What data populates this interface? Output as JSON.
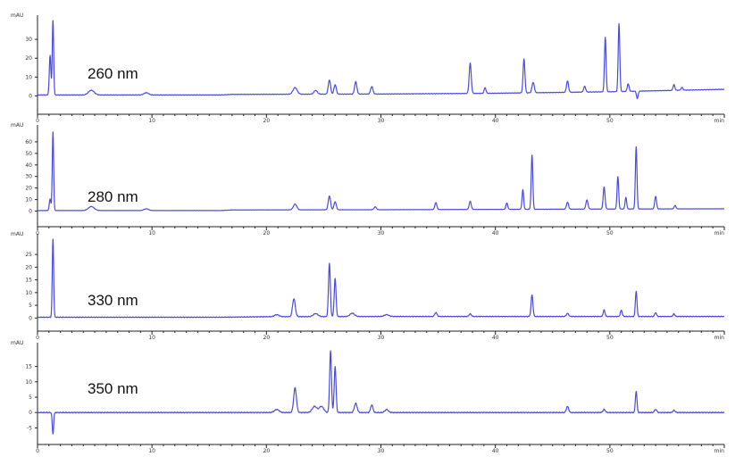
{
  "chart_data": [
    {
      "type": "line",
      "label": "260 nm",
      "ylabel": "mAU",
      "xlabel": "min",
      "xlim": [
        0,
        60
      ],
      "ylim": [
        -5,
        40
      ],
      "yticks": [
        0,
        10,
        20,
        30
      ],
      "xticks": [
        0,
        10,
        20,
        30,
        40,
        50
      ],
      "grid": false,
      "series": [
        {
          "baseline": [
            [
              0,
              0.5
            ],
            [
              16,
              0.5
            ],
            [
              17,
              0.8
            ],
            [
              30,
              1.0
            ],
            [
              40,
              1.4
            ],
            [
              50,
              2.2
            ],
            [
              60,
              3.5
            ]
          ],
          "peaks": [
            {
              "x": 1.1,
              "y": 21,
              "w": 0.07
            },
            {
              "x": 1.35,
              "y": 40,
              "w": 0.06
            },
            {
              "x": 4.7,
              "y": 2.5,
              "w": 0.25
            },
            {
              "x": 9.5,
              "y": 1.2,
              "w": 0.2
            },
            {
              "x": 22.5,
              "y": 3.5,
              "w": 0.18
            },
            {
              "x": 24.3,
              "y": 2.0,
              "w": 0.15
            },
            {
              "x": 25.5,
              "y": 7.5,
              "w": 0.1
            },
            {
              "x": 26.0,
              "y": 5.0,
              "w": 0.1
            },
            {
              "x": 27.8,
              "y": 6.5,
              "w": 0.1
            },
            {
              "x": 29.2,
              "y": 4.0,
              "w": 0.1
            },
            {
              "x": 37.8,
              "y": 16,
              "w": 0.09
            },
            {
              "x": 39.1,
              "y": 3,
              "w": 0.08
            },
            {
              "x": 42.5,
              "y": 18,
              "w": 0.08
            },
            {
              "x": 43.3,
              "y": 5.5,
              "w": 0.1
            },
            {
              "x": 46.3,
              "y": 6,
              "w": 0.09
            },
            {
              "x": 47.8,
              "y": 3,
              "w": 0.09
            },
            {
              "x": 49.6,
              "y": 29,
              "w": 0.07
            },
            {
              "x": 50.8,
              "y": 36,
              "w": 0.07
            },
            {
              "x": 51.6,
              "y": 4,
              "w": 0.08
            },
            {
              "x": 55.6,
              "y": 3,
              "w": 0.08
            },
            {
              "x": 56.3,
              "y": 1.5,
              "w": 0.08
            }
          ],
          "dips": [
            {
              "x": 52.4,
              "y": -4,
              "w": 0.07
            }
          ]
        }
      ]
    },
    {
      "type": "line",
      "label": "280 nm",
      "ylabel": "mAU",
      "xlabel": "min",
      "xlim": [
        0,
        60
      ],
      "ylim": [
        -5,
        70
      ],
      "yticks": [
        0,
        10,
        20,
        30,
        40,
        50,
        60
      ],
      "xticks": [
        0,
        10,
        20,
        30,
        40,
        50
      ],
      "grid": false,
      "series": [
        {
          "baseline": [
            [
              0,
              0.5
            ],
            [
              16,
              0.5
            ],
            [
              17,
              1.0
            ],
            [
              30,
              1.2
            ],
            [
              40,
              1.5
            ],
            [
              50,
              1.8
            ],
            [
              60,
              2.0
            ]
          ],
          "peaks": [
            {
              "x": 1.1,
              "y": 10,
              "w": 0.07
            },
            {
              "x": 1.35,
              "y": 68,
              "w": 0.06
            },
            {
              "x": 4.7,
              "y": 3.5,
              "w": 0.25
            },
            {
              "x": 9.5,
              "y": 1.5,
              "w": 0.2
            },
            {
              "x": 22.5,
              "y": 5,
              "w": 0.15
            },
            {
              "x": 25.5,
              "y": 12,
              "w": 0.1
            },
            {
              "x": 26.0,
              "y": 7,
              "w": 0.1
            },
            {
              "x": 29.5,
              "y": 2.5,
              "w": 0.1
            },
            {
              "x": 34.8,
              "y": 6,
              "w": 0.09
            },
            {
              "x": 37.8,
              "y": 7,
              "w": 0.09
            },
            {
              "x": 41.0,
              "y": 5.5,
              "w": 0.08
            },
            {
              "x": 42.4,
              "y": 17,
              "w": 0.07
            },
            {
              "x": 43.2,
              "y": 47,
              "w": 0.07
            },
            {
              "x": 46.3,
              "y": 6,
              "w": 0.09
            },
            {
              "x": 48.0,
              "y": 8,
              "w": 0.09
            },
            {
              "x": 49.5,
              "y": 19,
              "w": 0.08
            },
            {
              "x": 50.7,
              "y": 28,
              "w": 0.07
            },
            {
              "x": 51.4,
              "y": 10,
              "w": 0.07
            },
            {
              "x": 52.3,
              "y": 54,
              "w": 0.07
            },
            {
              "x": 54.0,
              "y": 11,
              "w": 0.08
            },
            {
              "x": 55.7,
              "y": 3,
              "w": 0.08
            }
          ],
          "dips": []
        }
      ]
    },
    {
      "type": "line",
      "label": "330 nm",
      "ylabel": "mAU",
      "xlabel": "min",
      "xlim": [
        0,
        60
      ],
      "ylim": [
        -2,
        31
      ],
      "yticks": [
        0,
        5,
        10,
        15,
        20,
        25
      ],
      "xticks": [
        0,
        10,
        20,
        30,
        40,
        50
      ],
      "grid": false,
      "series": [
        {
          "baseline": [
            [
              0,
              0.3
            ],
            [
              16,
              0.3
            ],
            [
              20,
              0.5
            ],
            [
              30,
              0.6
            ],
            [
              40,
              0.6
            ],
            [
              50,
              0.6
            ],
            [
              60,
              0.6
            ]
          ],
          "peaks": [
            {
              "x": 1.35,
              "y": 31,
              "w": 0.06
            },
            {
              "x": 20.9,
              "y": 0.8,
              "w": 0.2
            },
            {
              "x": 22.4,
              "y": 7,
              "w": 0.12
            },
            {
              "x": 24.3,
              "y": 1.2,
              "w": 0.2
            },
            {
              "x": 25.5,
              "y": 21,
              "w": 0.08
            },
            {
              "x": 26.0,
              "y": 15,
              "w": 0.08
            },
            {
              "x": 27.5,
              "y": 1.3,
              "w": 0.2
            },
            {
              "x": 30.5,
              "y": 0.7,
              "w": 0.2
            },
            {
              "x": 34.8,
              "y": 1.5,
              "w": 0.1
            },
            {
              "x": 37.8,
              "y": 1,
              "w": 0.1
            },
            {
              "x": 43.2,
              "y": 8.5,
              "w": 0.08
            },
            {
              "x": 46.3,
              "y": 1.2,
              "w": 0.1
            },
            {
              "x": 49.5,
              "y": 2.5,
              "w": 0.08
            },
            {
              "x": 51.0,
              "y": 2.5,
              "w": 0.08
            },
            {
              "x": 52.3,
              "y": 10,
              "w": 0.07
            },
            {
              "x": 54.0,
              "y": 1.5,
              "w": 0.08
            },
            {
              "x": 55.6,
              "y": 1,
              "w": 0.08
            }
          ],
          "dips": []
        }
      ]
    },
    {
      "type": "line",
      "label": "350 nm",
      "ylabel": "mAU",
      "xlabel": "min",
      "xlim": [
        0,
        60
      ],
      "ylim": [
        -7.5,
        21
      ],
      "yticks": [
        -5,
        0,
        5,
        10,
        15
      ],
      "xticks": [
        0,
        10,
        20,
        30,
        40,
        50
      ],
      "grid": false,
      "series": [
        {
          "baseline": [
            [
              0,
              0
            ],
            [
              60,
              0
            ]
          ],
          "peaks": [
            {
              "x": 20.9,
              "y": 1,
              "w": 0.2
            },
            {
              "x": 22.5,
              "y": 8,
              "w": 0.12
            },
            {
              "x": 24.2,
              "y": 2,
              "w": 0.2
            },
            {
              "x": 24.8,
              "y": 2,
              "w": 0.2
            },
            {
              "x": 25.6,
              "y": 20,
              "w": 0.08
            },
            {
              "x": 26.0,
              "y": 15,
              "w": 0.08
            },
            {
              "x": 27.8,
              "y": 3,
              "w": 0.12
            },
            {
              "x": 29.2,
              "y": 2.5,
              "w": 0.1
            },
            {
              "x": 30.5,
              "y": 1,
              "w": 0.15
            },
            {
              "x": 46.3,
              "y": 2,
              "w": 0.1
            },
            {
              "x": 49.5,
              "y": 1,
              "w": 0.1
            },
            {
              "x": 52.3,
              "y": 7,
              "w": 0.07
            },
            {
              "x": 54.0,
              "y": 1,
              "w": 0.1
            },
            {
              "x": 55.6,
              "y": 0.7,
              "w": 0.1
            }
          ],
          "dips": [
            {
              "x": 1.35,
              "y": -7,
              "w": 0.06
            }
          ]
        }
      ]
    }
  ]
}
